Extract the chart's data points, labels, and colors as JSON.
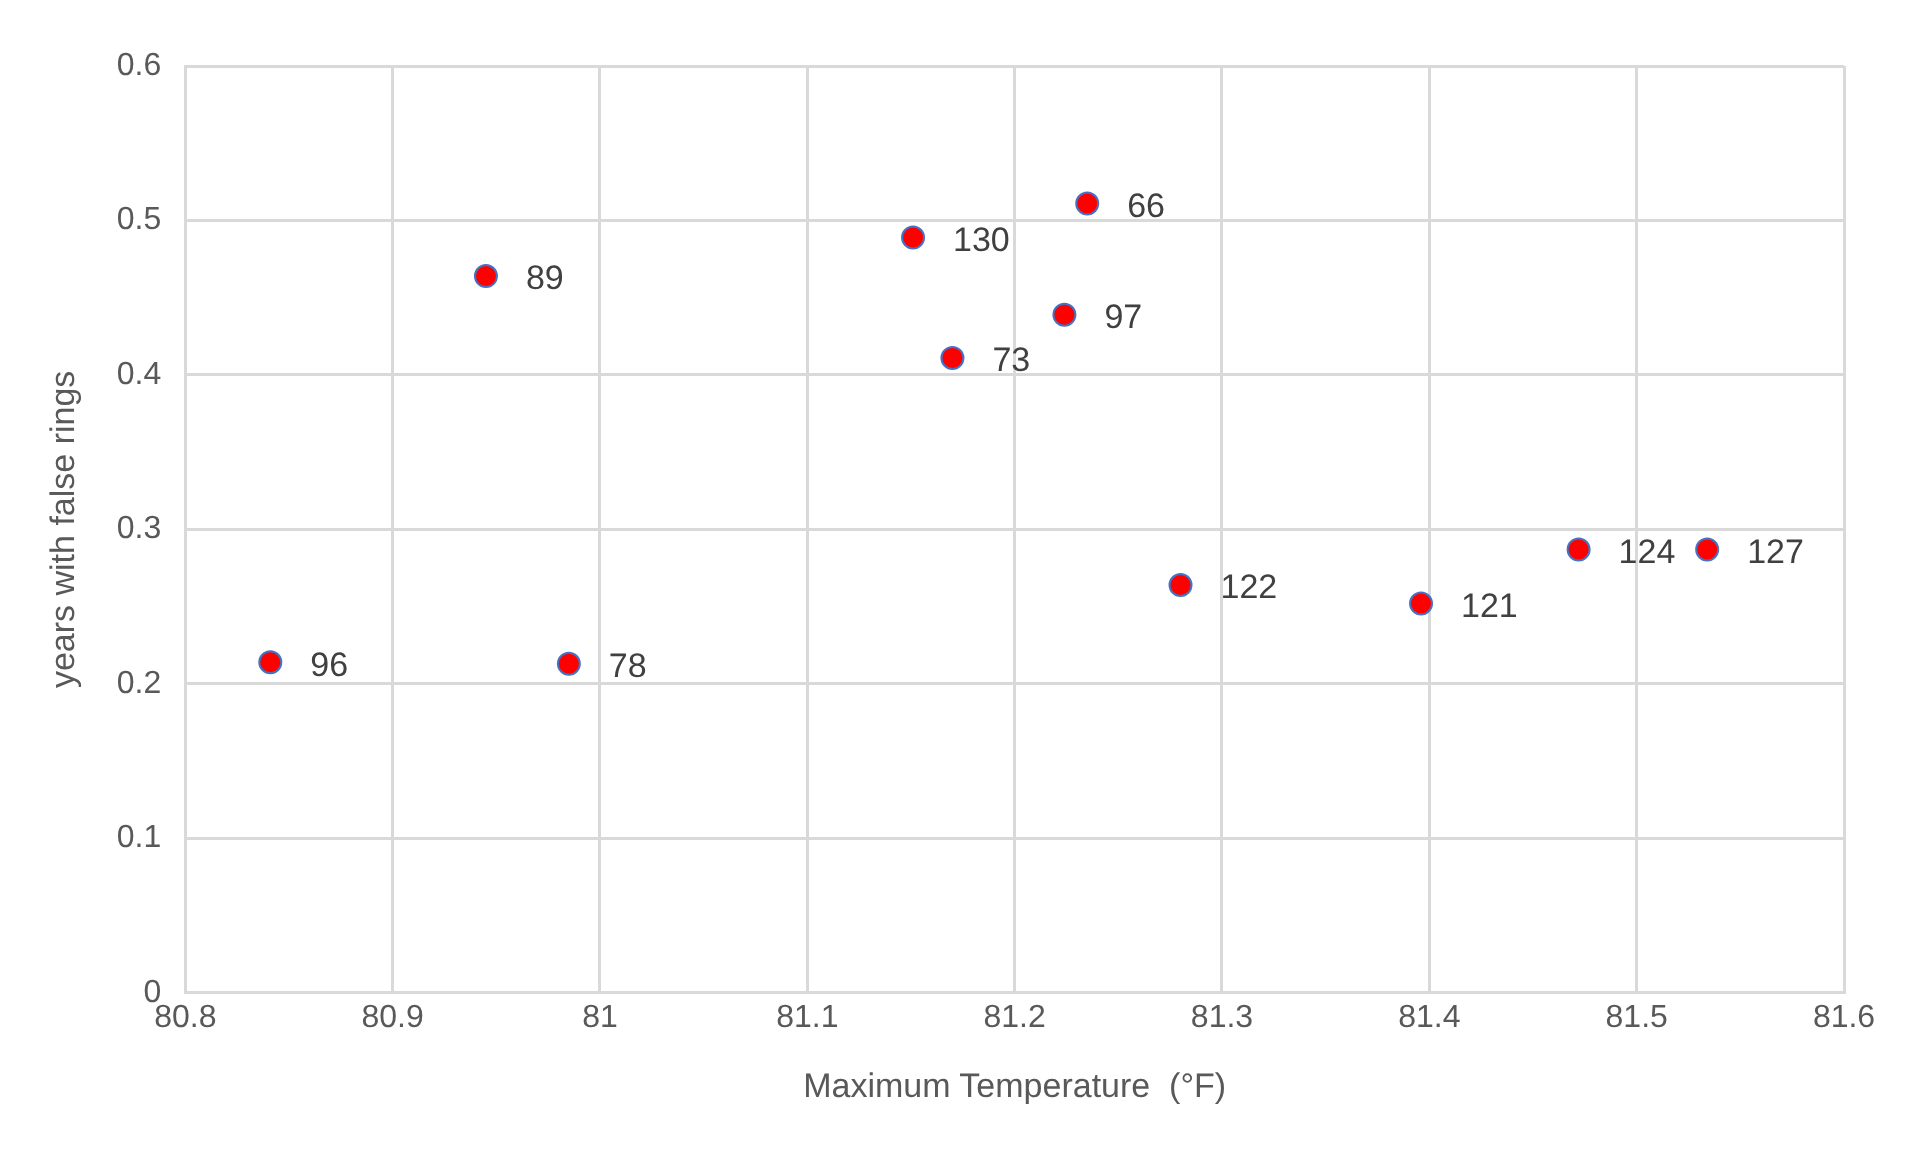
{
  "chart_data": {
    "type": "scatter",
    "xlabel": "Maximum Temperature  (°F)",
    "ylabel": "years with false rings",
    "x": [
      80.841,
      80.945,
      80.985,
      81.151,
      81.235,
      81.224,
      81.17,
      81.28,
      81.396,
      81.472,
      81.534
    ],
    "values": [
      0.214,
      0.464,
      0.213,
      0.489,
      0.511,
      0.439,
      0.411,
      0.264,
      0.252,
      0.287,
      0.287
    ],
    "color": "#ff0000",
    "marker": "circle",
    "xlim": [
      80.8,
      81.6
    ],
    "xticks": [
      80.8,
      80.9,
      81,
      81.1,
      81.2,
      81.3,
      81.4,
      81.5,
      81.6
    ],
    "ylim": [
      0,
      0.6
    ],
    "yticks": [
      0,
      0.1,
      0.2,
      0.3,
      0.4,
      0.5,
      0.6
    ],
    "grid": true,
    "legend": false,
    "annotations": [
      {
        "text": "96",
        "x": 80.841,
        "y": 0.214
      },
      {
        "text": "89",
        "x": 80.945,
        "y": 0.464
      },
      {
        "text": "78",
        "x": 80.985,
        "y": 0.213
      },
      {
        "text": "130",
        "x": 81.151,
        "y": 0.489
      },
      {
        "text": "66",
        "x": 81.235,
        "y": 0.511
      },
      {
        "text": "97",
        "x": 81.224,
        "y": 0.439
      },
      {
        "text": "73",
        "x": 81.17,
        "y": 0.411
      },
      {
        "text": "122",
        "x": 81.28,
        "y": 0.264
      },
      {
        "text": "121",
        "x": 81.396,
        "y": 0.252
      },
      {
        "text": "124",
        "x": 81.472,
        "y": 0.287
      },
      {
        "text": "127",
        "x": 81.534,
        "y": 0.287
      }
    ]
  }
}
